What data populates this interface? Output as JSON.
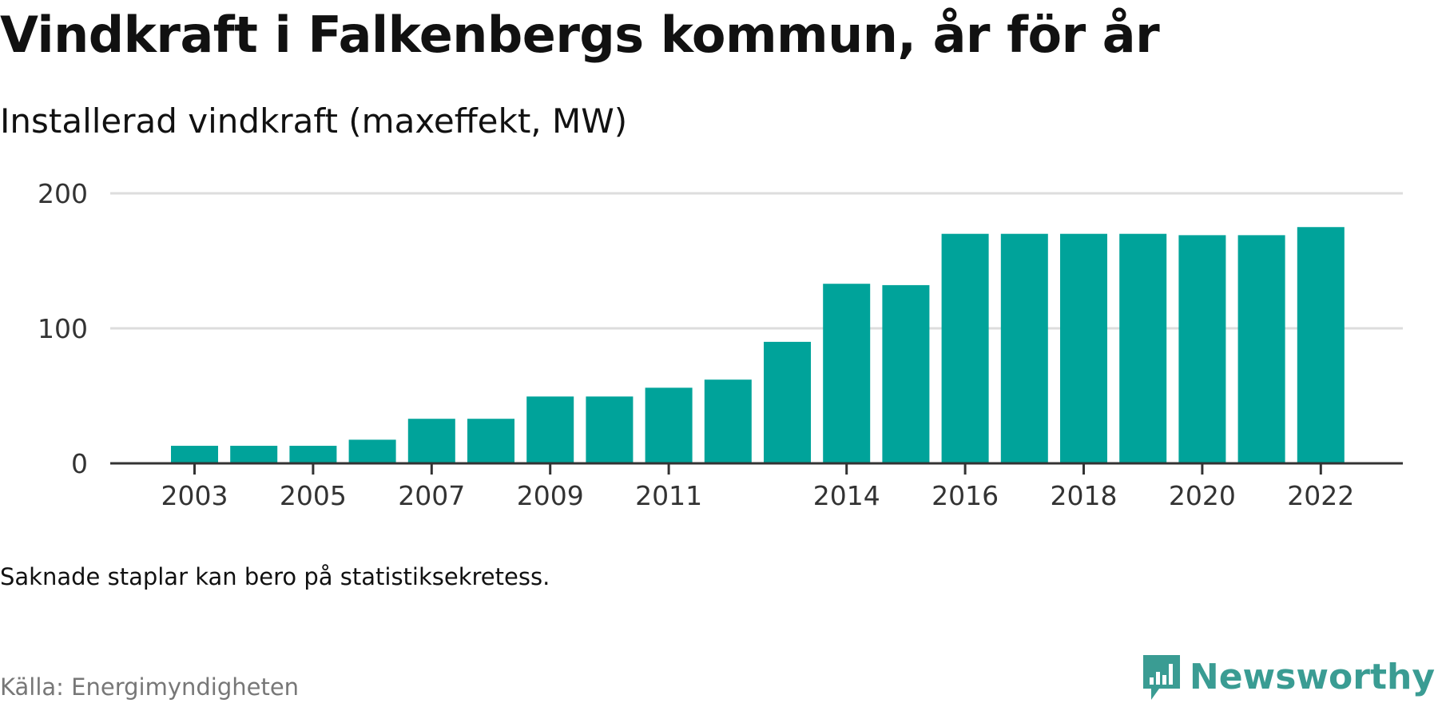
{
  "title": "Vindkraft i Falkenbergs kommun, år för år",
  "subtitle": "Installerad vindkraft (maxeffekt, MW)",
  "note": "Saknade staplar kan bero på statistiksekretess.",
  "source": "Källa: Energimyndigheten",
  "brand": {
    "name": "Newsworthy",
    "icon": "newsworthy-logo-icon",
    "color": "#3a9c93"
  },
  "colors": {
    "bar": "#00a39a",
    "grid": "#dddddd",
    "axis": "#333333"
  },
  "chart_data": {
    "type": "bar",
    "x": [
      2003,
      2004,
      2005,
      2006,
      2007,
      2008,
      2009,
      2010,
      2011,
      2012,
      2013,
      2014,
      2015,
      2016,
      2017,
      2018,
      2019,
      2020,
      2021,
      2022
    ],
    "values": [
      13,
      13,
      13,
      17.5,
      33,
      33,
      49.5,
      49.5,
      56,
      62,
      90,
      133,
      132,
      170,
      170,
      170,
      170,
      169,
      169,
      175
    ],
    "x_tick_labels": [
      "2003",
      "2005",
      "2007",
      "2009",
      "2011",
      "2014",
      "2016",
      "2018",
      "2020",
      "2022"
    ],
    "y_ticks": [
      0,
      100,
      200
    ],
    "ylim": [
      0,
      200
    ],
    "grid": true,
    "xlabel": "",
    "ylabel": ""
  }
}
